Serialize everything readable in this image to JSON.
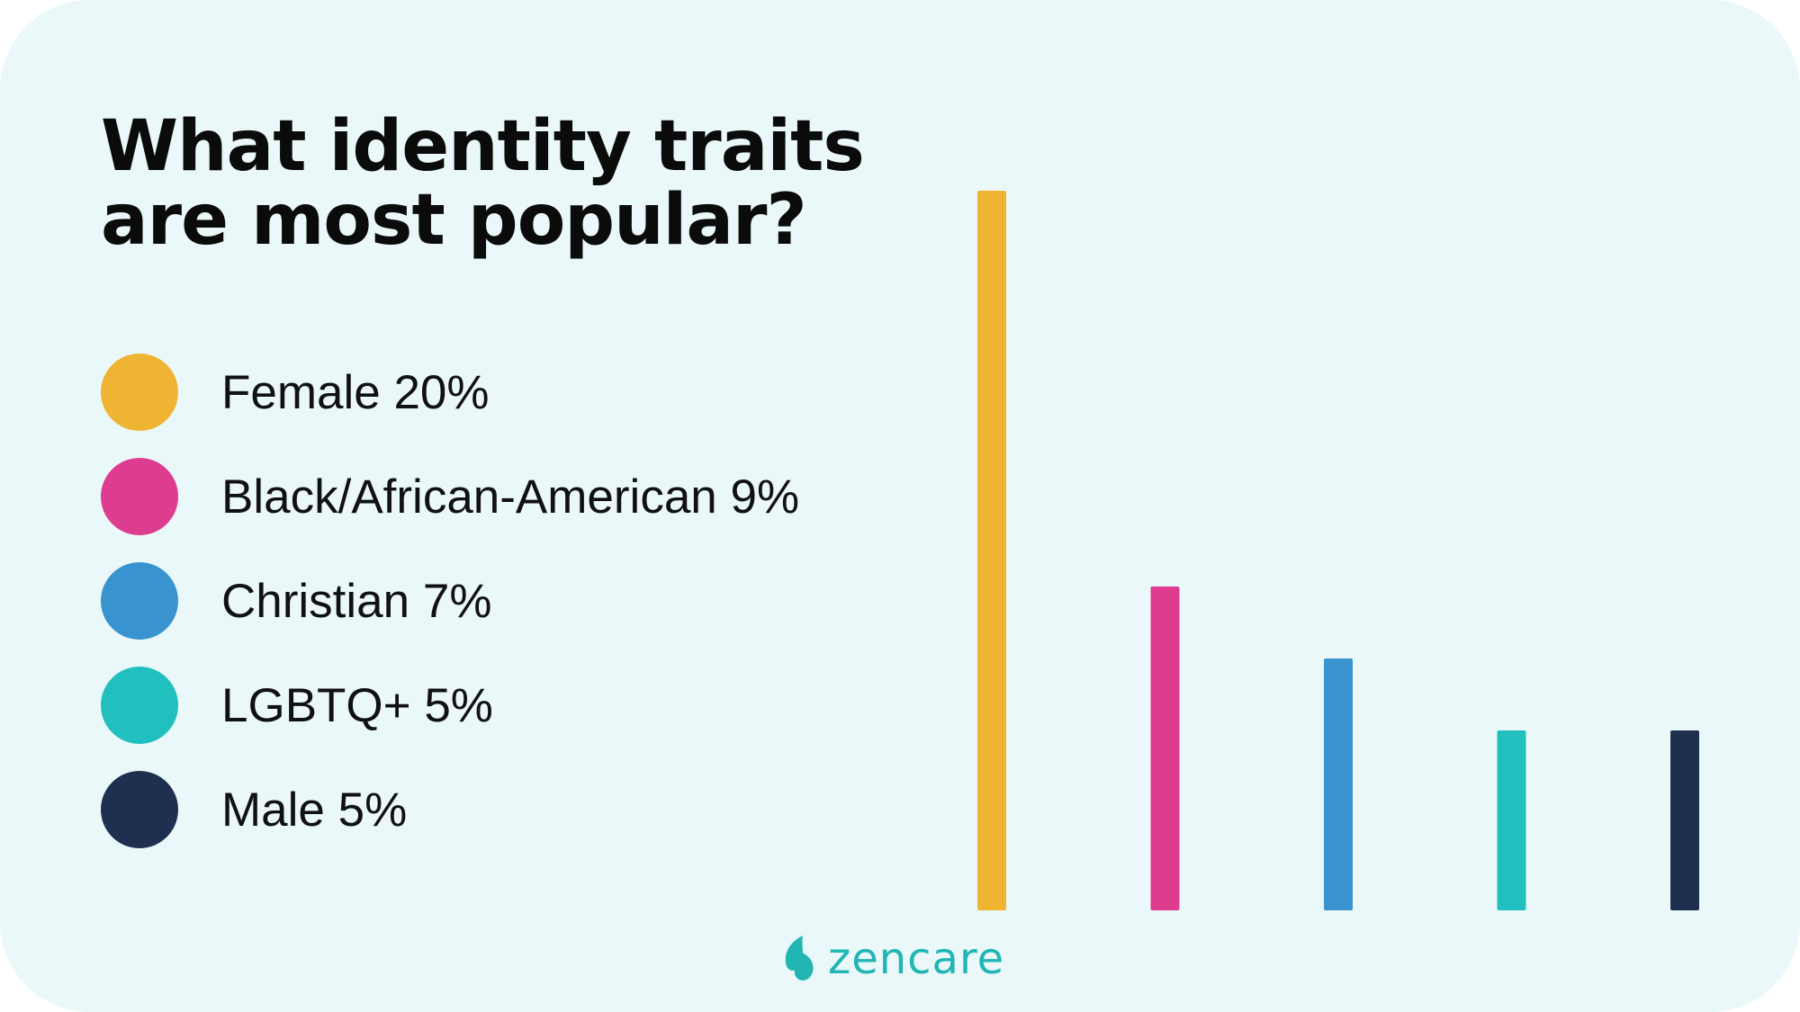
{
  "title": "What identity traits are most popular?",
  "logo": {
    "text": "zencare",
    "icon": "zencare-leaf-logo",
    "color": "#21b6b4"
  },
  "chart_data": {
    "type": "bar",
    "title": "What identity traits are most popular?",
    "categories": [
      "Female",
      "Black/African-American",
      "Christian",
      "LGBTQ+",
      "Male"
    ],
    "values": [
      20,
      9,
      7,
      5,
      5
    ],
    "unit": "%",
    "colors": [
      "#efb431",
      "#dd3c8f",
      "#3893cf",
      "#22bfbf",
      "#1e2f50"
    ],
    "legend_labels": [
      "Female 20%",
      "Black/African-American 9%",
      "Christian 7%",
      "LGBTQ+ 5%",
      "Male 5%"
    ],
    "legend_position": "left",
    "axes_visible": false,
    "grid": false,
    "ylim": [
      0,
      20
    ]
  }
}
